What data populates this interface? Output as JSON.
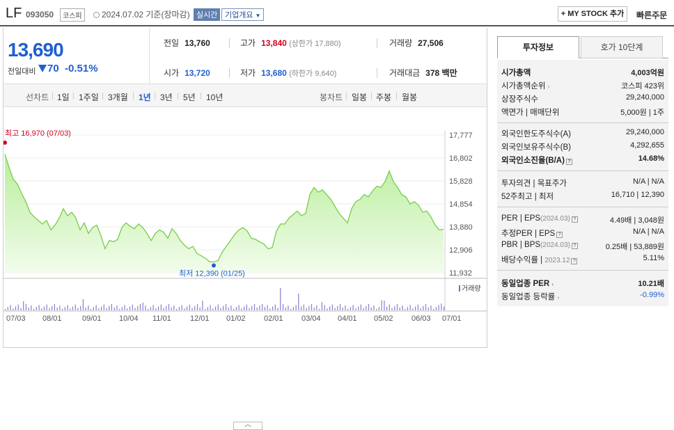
{
  "header": {
    "name": "LF",
    "code": "093050",
    "market": "코스피",
    "date": "2024.07.02 기준(장마감)",
    "realtime": "실시간",
    "corp_info": "기업개요",
    "mystock": "+ MY STOCK 추가",
    "quick_order": "빠른주문"
  },
  "quote": {
    "price": "13,690",
    "change_label": "전일대비",
    "change": "70",
    "change_pct": "-0.51%",
    "prev_label": "전일",
    "prev": "13,760",
    "high_label": "고가",
    "high": "13,840",
    "upper_limit": "(상한가 17,880)",
    "volume_label": "거래량",
    "volume": "27,506",
    "open_label": "시가",
    "open": "13,720",
    "low_label": "저가",
    "low": "13,680",
    "lower_limit": "(하한가 9,640)",
    "amount_label": "거래대금",
    "amount": "378 백만"
  },
  "chart_tabs": {
    "line_head": "선차트",
    "line_periods": [
      "1일",
      "1주일",
      "3개월",
      "1년",
      "3년",
      "5년",
      "10년"
    ],
    "selected": "1년",
    "candle_head": "봉차트",
    "candle_periods": [
      "일봉",
      "주봉",
      "월봉"
    ]
  },
  "chart_data": {
    "type": "area",
    "y_ticks": [
      "17,777",
      "16,802",
      "15,828",
      "14,854",
      "13,880",
      "12,906",
      "11,932"
    ],
    "ylim": [
      11932,
      17777
    ],
    "x_ticks": [
      "07/03",
      "08/01",
      "09/01",
      "10/04",
      "11/01",
      "12/01",
      "01/02",
      "02/01",
      "03/04",
      "04/01",
      "05/02",
      "06/03",
      "07/01"
    ],
    "high_label": "최고 16,970 (07/03)",
    "low_label": "최저 12,390 (01/25)",
    "volume_label": "거래량",
    "values": [
      16970,
      16400,
      15900,
      15700,
      15300,
      14950,
      14500,
      14300,
      14150,
      14000,
      14150,
      13750,
      13950,
      14250,
      14650,
      14350,
      14500,
      14250,
      13750,
      14050,
      13600,
      13850,
      13950,
      13500,
      12950,
      13300,
      13250,
      13350,
      13850,
      14050,
      13900,
      13800,
      14000,
      13850,
      13600,
      13300,
      13600,
      13750,
      13650,
      13400,
      13800,
      13600,
      13300,
      13100,
      12950,
      13050,
      12750,
      12650,
      12550,
      12400,
      12390,
      12450,
      12800,
      13050,
      13300,
      13550,
      13750,
      13850,
      13700,
      13400,
      13350,
      13250,
      13150,
      12950,
      13000,
      13700,
      14000,
      14000,
      14250,
      14400,
      14550,
      14350,
      14450,
      15250,
      15550,
      15350,
      15450,
      15250,
      15050,
      14750,
      14450,
      14250,
      14050,
      14650,
      14950,
      15050,
      15250,
      15150,
      15400,
      15600,
      15550,
      15800,
      16250,
      15800,
      15550,
      15250,
      15150,
      14850,
      14950,
      14800,
      14500,
      14550,
      14300,
      13950,
      13750,
      13780
    ]
  },
  "panel": {
    "tabs": [
      "투자정보",
      "호가 10단계"
    ],
    "market_cap_label": "시가총액",
    "market_cap": "4,003억원",
    "rank_label": "시가총액순위",
    "rank": "코스피 423위",
    "shares_label": "상장주식수",
    "shares": "29,240,000",
    "par_label": "액면가 | 매매단위",
    "par": "5,000원 | 1주",
    "foreign_limit_label": "외국인한도주식수(A)",
    "foreign_limit": "29,240,000",
    "foreign_hold_label": "외국인보유주식수(B)",
    "foreign_hold": "4,292,655",
    "foreign_rate_label": "외국인소진율(B/A)",
    "foreign_rate": "14.68%",
    "opinion_label": "투자의견 | 목표주가",
    "opinion": "N/A | N/A",
    "w52_label": "52주최고 | 최저",
    "w52": "16,710 | 12,390",
    "per_label": "PER | EPS",
    "per_date": "(2024.03)",
    "per": "4.49배 | 3,048원",
    "est_label": "추정PER | EPS",
    "est": "N/A | N/A",
    "pbr_label": "PBR | BPS",
    "pbr_date": "(2024.03)",
    "pbr": "0.25배 | 53,889원",
    "div_label": "배당수익률 | ",
    "div_date": "2023.12",
    "div": "5.11%",
    "sector_per_label": "동일업종 PER",
    "sector_per": "10.21배",
    "sector_rate_label": "동일업종 등락률",
    "sector_rate": "-0.99%"
  }
}
